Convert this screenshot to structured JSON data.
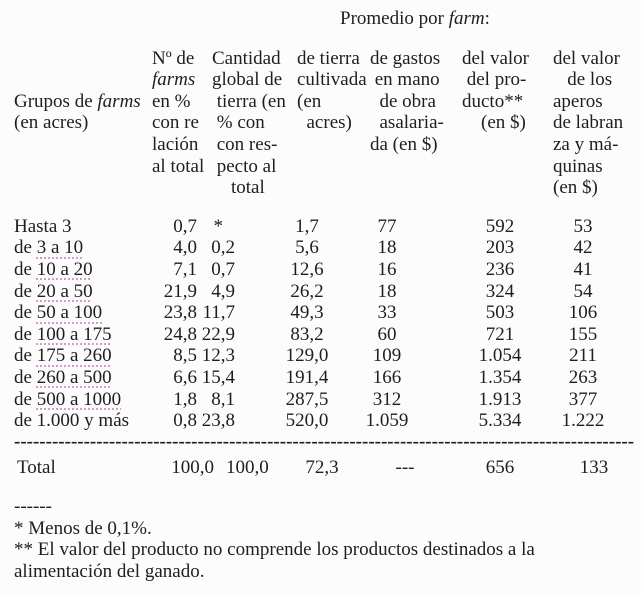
{
  "colors": {
    "text": "#1e1e1e",
    "background": "#fcfcfc",
    "squiggle": "#cf9ecf"
  },
  "title": {
    "prefix": "Promedio por ",
    "italic": "farm",
    "suffix": ":"
  },
  "table": {
    "headers": [
      {
        "id": "grupos-de-farms",
        "lines": [
          [
            "Grupos de ",
            {
              "i": "farms"
            }
          ],
          [
            "(en acres)"
          ]
        ]
      },
      {
        "id": "num-farms-pct",
        "lines": [
          [
            "Nº de"
          ],
          [
            {
              "i": "farms"
            }
          ],
          [
            "en %"
          ],
          [
            "con re"
          ],
          [
            "lación"
          ],
          [
            "al total"
          ]
        ]
      },
      {
        "id": "cantidad-global-tierra",
        "lines": [
          [
            "Cantidad"
          ],
          [
            "global de"
          ],
          [
            " tierra (en"
          ],
          [
            " % con"
          ],
          [
            " con res-"
          ],
          [
            " pecto al"
          ],
          [
            "    total"
          ]
        ]
      },
      {
        "id": "tierra-cultivada",
        "lines": [
          [
            "de tierra"
          ],
          [
            "cultivada"
          ],
          [
            "(en"
          ],
          [
            "  acres)"
          ]
        ]
      },
      {
        "id": "gastos-mano-obra",
        "lines": [
          [
            "de gastos"
          ],
          [
            " en mano"
          ],
          [
            "  de obra"
          ],
          [
            "  asalaria-"
          ],
          [
            "da (en $)"
          ]
        ]
      },
      {
        "id": "valor-producto",
        "lines": [
          [
            "del valor"
          ],
          [
            " del pro-"
          ],
          [
            "ducto**"
          ],
          [
            "    (en $)"
          ]
        ]
      },
      {
        "id": "valor-aperos",
        "lines": [
          [
            "del valor"
          ],
          [
            "   de los"
          ],
          [
            "aperos"
          ],
          [
            "de labran"
          ],
          [
            "za y má-"
          ],
          [
            "quinas"
          ],
          [
            "(en $)"
          ]
        ]
      }
    ],
    "rows": [
      {
        "label": {
          "pre": "Hasta 3"
        },
        "values": [
          "0,7",
          "*",
          "1,7",
          "77",
          "592",
          "53"
        ]
      },
      {
        "label": {
          "pre": "de ",
          "marked": "3 a 10"
        },
        "values": [
          "4,0",
          "0,2",
          "5,6",
          "18",
          "203",
          "42"
        ]
      },
      {
        "label": {
          "pre": "de ",
          "marked": "10 a 20"
        },
        "values": [
          "7,1",
          "0,7",
          "12,6",
          "16",
          "236",
          "41"
        ]
      },
      {
        "label": {
          "pre": "de ",
          "marked": "20 a 50"
        },
        "values": [
          "21,9",
          "4,9",
          "26,2",
          "18",
          "324",
          "54"
        ]
      },
      {
        "label": {
          "pre": "de ",
          "marked": "50 a 100"
        },
        "values": [
          "23,8",
          "11,7",
          "49,3",
          "33",
          "503",
          "106"
        ]
      },
      {
        "label": {
          "pre": "de ",
          "marked": "100 a 175"
        },
        "values": [
          "24,8",
          "22,9",
          "83,2",
          "60",
          "721",
          "155"
        ]
      },
      {
        "label": {
          "pre": "de ",
          "marked": "175 a 260"
        },
        "values": [
          "8,5",
          "12,3",
          "129,0",
          "109",
          "1.054",
          "211"
        ]
      },
      {
        "label": {
          "pre": "de ",
          "marked": "260 a 500"
        },
        "values": [
          "6,6",
          "15,4",
          "191,4",
          "166",
          "1.354",
          "263"
        ]
      },
      {
        "label": {
          "pre": "de ",
          "marked": "500 a 1000"
        },
        "values": [
          "1,8",
          "8,1",
          "287,5",
          "312",
          "1.913",
          "377"
        ]
      },
      {
        "label": {
          "pre": "de 1.000 y más"
        },
        "values": [
          "0,8",
          "23,8",
          "520,0",
          "1.059",
          "5.334",
          "1.222"
        ]
      }
    ],
    "separator_dashes": "--------------------------------------------------------------------------------------------------",
    "total_row": {
      "label": "Total",
      "values": [
        "100,0",
        "100,0",
        "72,3",
        "---",
        "656",
        "133"
      ]
    }
  },
  "footnotes": {
    "separator": "------",
    "note1": "* Menos de 0,1%.",
    "note2": "** El valor del producto no comprende los productos destinados a la alimentación del ganado."
  }
}
